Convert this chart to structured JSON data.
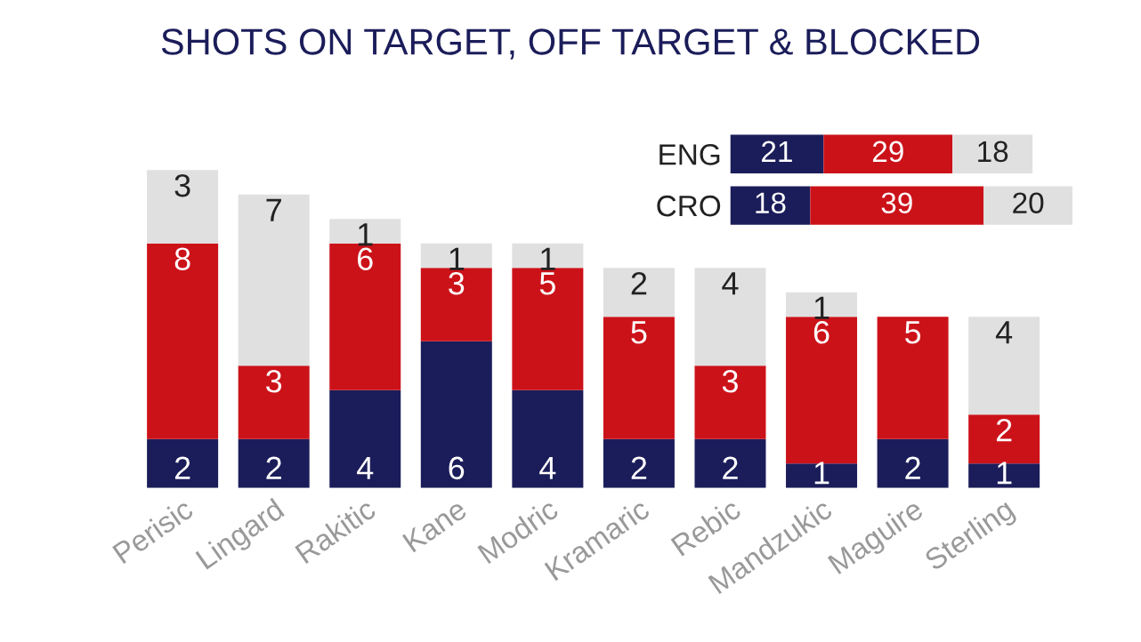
{
  "chart_data": [
    {
      "type": "bar",
      "title": "SHOTS ON TARGET, OFF TARGET & BLOCKED",
      "stacked": true,
      "data_labels": true,
      "tick_labels": "x",
      "legend": false,
      "grid": false,
      "categories": [
        "Perisic",
        "Lingard",
        "Rakitic",
        "Kane",
        "Modric",
        "Kramaric",
        "Rebic",
        "Mandzukic",
        "Maguire",
        "Sterling"
      ],
      "series": [
        {
          "color": "#1b1d5a",
          "values": [
            2,
            2,
            4,
            6,
            4,
            2,
            2,
            1,
            2,
            1
          ]
        },
        {
          "color": "#cc1219",
          "values": [
            8,
            3,
            6,
            3,
            5,
            5,
            3,
            6,
            5,
            2
          ]
        },
        {
          "color": "#e0e0e0",
          "values": [
            3,
            7,
            1,
            1,
            1,
            2,
            4,
            1,
            0,
            4
          ],
          "value_labels": [
            "3",
            "7",
            "1",
            "1",
            "1",
            "2",
            "4",
            "1",
            null,
            "4"
          ]
        }
      ]
    },
    {
      "type": "bar",
      "orientation": "horizontal",
      "stacked": true,
      "data_labels": true,
      "tick_labels": "y",
      "xlim": [
        0,
        77
      ],
      "legend": false,
      "grid": false,
      "categories": [
        "ENG",
        "CRO"
      ],
      "series": [
        {
          "color": "#1b1d5a",
          "values": [
            21,
            18
          ]
        },
        {
          "color": "#cc1219",
          "values": [
            29,
            39
          ]
        },
        {
          "color": "#e0e0e0",
          "values": [
            18,
            20
          ]
        }
      ]
    }
  ]
}
